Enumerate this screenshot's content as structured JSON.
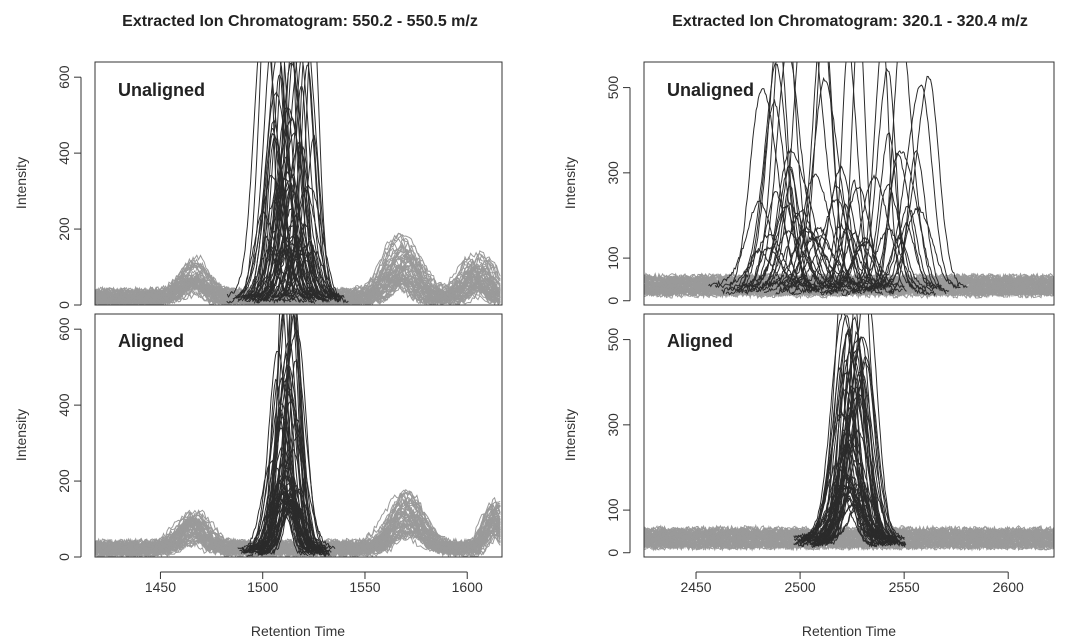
{
  "chart_data": [
    {
      "type": "line",
      "title": "Extracted Ion Chromatogram: 550.2 - 550.5 m/z",
      "xlabel": "Retention Time",
      "ylabel": "Intensity",
      "xlim": [
        1418,
        1617
      ],
      "x_ticks": [
        1450,
        1500,
        1550,
        1600
      ],
      "y_ticks": [
        0,
        200,
        400,
        600
      ],
      "grid": false,
      "legend": "none",
      "colors": {
        "target_traces": "#2b2b2b",
        "other_traces": "#9a9a9a"
      },
      "panels": [
        {
          "label": "Unaligned",
          "ylim": [
            0,
            640
          ],
          "baseline": {
            "min": 5,
            "max": 40
          },
          "grey_peaks": [
            {
              "center": 1466,
              "width": 6,
              "height": 70,
              "jitter": 4,
              "max": 150
            },
            {
              "center": 1568,
              "width": 7,
              "height": 120,
              "jitter": 6,
              "max": 200
            },
            {
              "center": 1605,
              "width": 5,
              "height": 90,
              "jitter": 6,
              "max": 320
            }
          ],
          "dark_peak": {
            "center_min": 1500,
            "center_max": 1525,
            "height_min": 100,
            "height_max": 620,
            "width": 5
          }
        },
        {
          "label": "Aligned",
          "ylim": [
            0,
            640
          ],
          "baseline": {
            "min": 5,
            "max": 40
          },
          "grey_peaks": [
            {
              "center": 1466,
              "width": 6,
              "height": 70,
              "jitter": 3,
              "max": 150
            },
            {
              "center": 1571,
              "width": 7,
              "height": 110,
              "jitter": 4,
              "max": 200
            },
            {
              "center": 1613,
              "width": 4,
              "height": 100,
              "jitter": 3,
              "max": 320
            }
          ],
          "dark_peak": {
            "center_min": 1508,
            "center_max": 1516,
            "height_min": 100,
            "height_max": 620,
            "width": 5
          }
        }
      ]
    },
    {
      "type": "line",
      "title": "Extracted Ion Chromatogram: 320.1 - 320.4 m/z",
      "xlabel": "Retention Time",
      "ylabel": "Intensity",
      "xlim": [
        2425,
        2622
      ],
      "x_ticks": [
        2450,
        2500,
        2550,
        2600
      ],
      "y_ticks": [
        0,
        100,
        300,
        500
      ],
      "grid": false,
      "legend": "none",
      "colors": {
        "target_traces": "#2b2b2b",
        "other_traces": "#9a9a9a"
      },
      "panels": [
        {
          "label": "Unaligned",
          "ylim": [
            -10,
            560
          ],
          "baseline": {
            "min": 15,
            "max": 55
          },
          "grey_peaks": [],
          "dark_peak": {
            "center_min": 2480,
            "center_max": 2560,
            "height_min": 80,
            "height_max": 520,
            "width": 6
          }
        },
        {
          "label": "Aligned",
          "ylim": [
            -10,
            560
          ],
          "baseline": {
            "min": 15,
            "max": 55
          },
          "grey_peaks": [],
          "dark_peak": {
            "center_min": 2520,
            "center_max": 2530,
            "height_min": 80,
            "height_max": 520,
            "width": 6
          }
        }
      ]
    }
  ]
}
